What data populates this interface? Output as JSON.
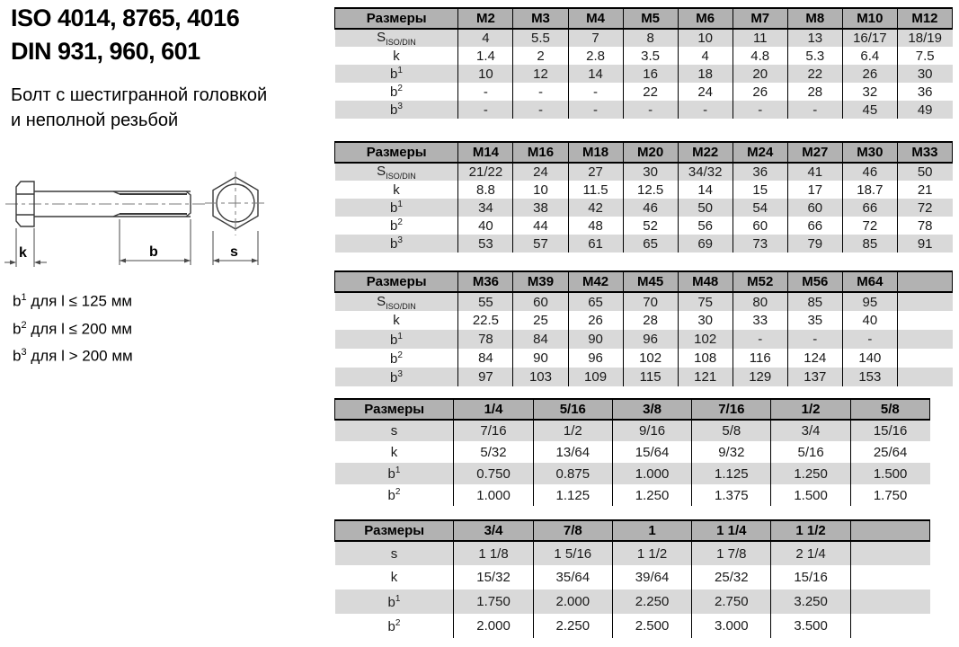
{
  "title": {
    "line1": "ISO 4014, 8765, 4016",
    "line2": "DIN 931, 960, 601"
  },
  "subtitle": {
    "line1": "Болт с шестигранной головкой",
    "line2": "и неполной резьбой"
  },
  "diagram": {
    "k_label": "k",
    "b_label": "b",
    "s_label": "s"
  },
  "footnotes": [
    {
      "sym": "b",
      "sup": "1",
      "text": " для l ≤ 125 мм"
    },
    {
      "sym": "b",
      "sup": "2",
      "text": " для l ≤ 200 мм"
    },
    {
      "sym": "b",
      "sup": "3",
      "text": " для l > 200 мм"
    }
  ],
  "colors": {
    "header_bg": "#b2b2b2",
    "row_alt": "#d9d9d9",
    "border": "#000000"
  },
  "tables": [
    {
      "header_label": "Размеры",
      "columns": [
        "M2",
        "M3",
        "M4",
        "M5",
        "M6",
        "M7",
        "M8",
        "M10",
        "M12"
      ],
      "trailing_empty_col": false,
      "rows": [
        {
          "label": "S",
          "label_sub": "ISO/DIN",
          "values": [
            "4",
            "5.5",
            "7",
            "8",
            "10",
            "11",
            "13",
            "16/17",
            "18/19"
          ]
        },
        {
          "label": "k",
          "values": [
            "1.4",
            "2",
            "2.8",
            "3.5",
            "4",
            "4.8",
            "5.3",
            "6.4",
            "7.5"
          ]
        },
        {
          "label": "b",
          "label_sup": "1",
          "values": [
            "10",
            "12",
            "14",
            "16",
            "18",
            "20",
            "22",
            "26",
            "30"
          ]
        },
        {
          "label": "b",
          "label_sup": "2",
          "values": [
            "-",
            "-",
            "-",
            "22",
            "24",
            "26",
            "28",
            "32",
            "36"
          ]
        },
        {
          "label": "b",
          "label_sup": "3",
          "values": [
            "-",
            "-",
            "-",
            "-",
            "-",
            "-",
            "-",
            "45",
            "49"
          ]
        }
      ]
    },
    {
      "header_label": "Размеры",
      "columns": [
        "M14",
        "M16",
        "M18",
        "M20",
        "M22",
        "M24",
        "M27",
        "M30",
        "M33"
      ],
      "trailing_empty_col": false,
      "rows": [
        {
          "label": "S",
          "label_sub": "ISO/DIN",
          "values": [
            "21/22",
            "24",
            "27",
            "30",
            "34/32",
            "36",
            "41",
            "46",
            "50"
          ]
        },
        {
          "label": "k",
          "values": [
            "8.8",
            "10",
            "11.5",
            "12.5",
            "14",
            "15",
            "17",
            "18.7",
            "21"
          ]
        },
        {
          "label": "b",
          "label_sup": "1",
          "values": [
            "34",
            "38",
            "42",
            "46",
            "50",
            "54",
            "60",
            "66",
            "72"
          ]
        },
        {
          "label": "b",
          "label_sup": "2",
          "values": [
            "40",
            "44",
            "48",
            "52",
            "56",
            "60",
            "66",
            "72",
            "78"
          ]
        },
        {
          "label": "b",
          "label_sup": "3",
          "values": [
            "53",
            "57",
            "61",
            "65",
            "69",
            "73",
            "79",
            "85",
            "91"
          ]
        }
      ]
    },
    {
      "header_label": "Размеры",
      "columns": [
        "M36",
        "M39",
        "M42",
        "M45",
        "M48",
        "M52",
        "M56",
        "M64"
      ],
      "trailing_empty_col": true,
      "rows": [
        {
          "label": "S",
          "label_sub": "ISO/DIN",
          "values": [
            "55",
            "60",
            "65",
            "70",
            "75",
            "80",
            "85",
            "95"
          ]
        },
        {
          "label": "k",
          "values": [
            "22.5",
            "25",
            "26",
            "28",
            "30",
            "33",
            "35",
            "40"
          ]
        },
        {
          "label": "b",
          "label_sup": "1",
          "values": [
            "78",
            "84",
            "90",
            "96",
            "102",
            "-",
            "-",
            "-"
          ]
        },
        {
          "label": "b",
          "label_sup": "2",
          "values": [
            "84",
            "90",
            "96",
            "102",
            "108",
            "116",
            "124",
            "140"
          ]
        },
        {
          "label": "b",
          "label_sup": "3",
          "values": [
            "97",
            "103",
            "109",
            "115",
            "121",
            "129",
            "137",
            "153"
          ]
        }
      ]
    },
    {
      "header_label": "Размеры",
      "columns": [
        "1/4",
        "5/16",
        "3/8",
        "7/16",
        "1/2",
        "5/8"
      ],
      "trailing_empty_col": false,
      "rows": [
        {
          "label": "s",
          "values": [
            "7/16",
            "1/2",
            "9/16",
            "5/8",
            "3/4",
            "15/16"
          ]
        },
        {
          "label": "k",
          "values": [
            "5/32",
            "13/64",
            "15/64",
            "9/32",
            "5/16",
            "25/64"
          ]
        },
        {
          "label": "b",
          "label_sup": "1",
          "values": [
            "0.750",
            "0.875",
            "1.000",
            "1.125",
            "1.250",
            "1.500"
          ]
        },
        {
          "label": "b",
          "label_sup": "2",
          "values": [
            "1.000",
            "1.125",
            "1.250",
            "1.375",
            "1.500",
            "1.750"
          ]
        }
      ]
    },
    {
      "header_label": "Размеры",
      "columns": [
        "3/4",
        "7/8",
        "1",
        "1 1/4",
        "1 1/2"
      ],
      "trailing_empty_col": true,
      "rows": [
        {
          "label": "s",
          "values": [
            "1 1/8",
            "1 5/16",
            "1 1/2",
            "1 7/8",
            "2 1/4"
          ]
        },
        {
          "label": "k",
          "values": [
            "15/32",
            "35/64",
            "39/64",
            "25/32",
            "15/16"
          ]
        },
        {
          "label": "b",
          "label_sup": "1",
          "values": [
            "1.750",
            "2.000",
            "2.250",
            "2.750",
            "3.250"
          ]
        },
        {
          "label": "b",
          "label_sup": "2",
          "values": [
            "2.000",
            "2.250",
            "2.500",
            "3.000",
            "3.500"
          ]
        }
      ]
    }
  ]
}
